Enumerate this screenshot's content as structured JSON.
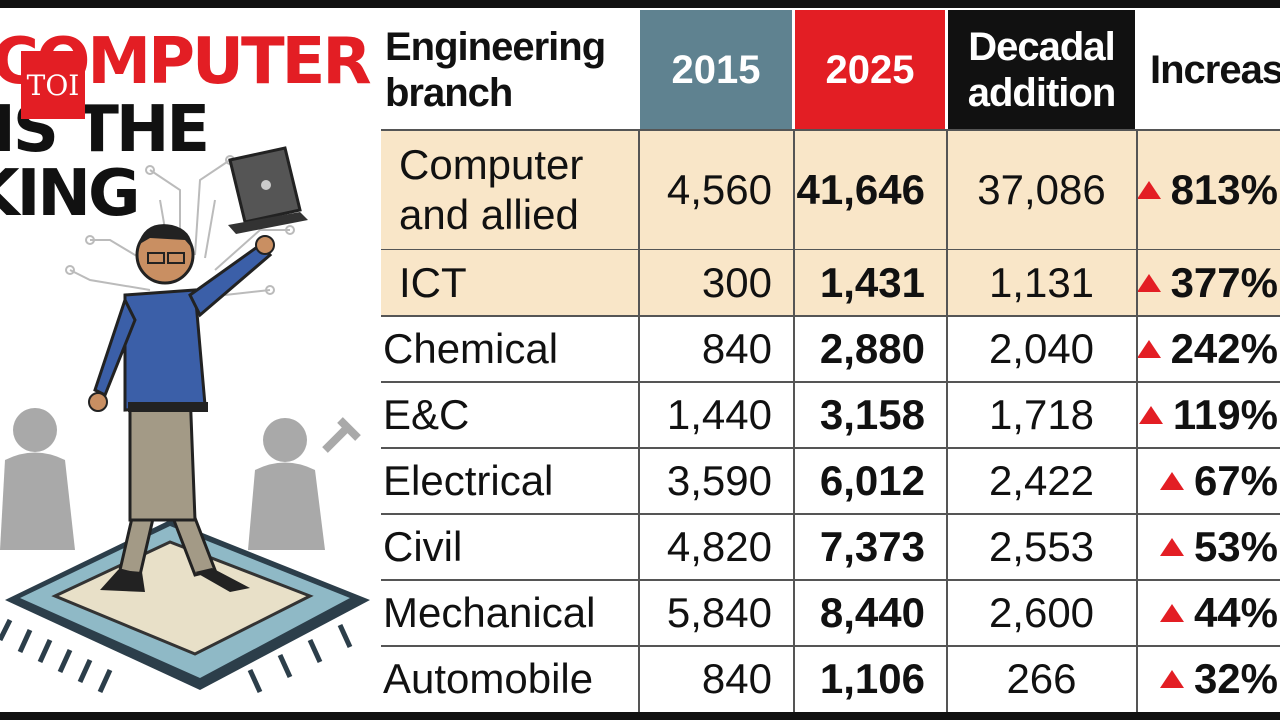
{
  "headline": {
    "line1": "COMPUTER",
    "line2": "IS THE",
    "line3": "KING"
  },
  "brand": {
    "logo_text": "TOI",
    "color": "#e31e24"
  },
  "colors": {
    "col_2015": "#5f8290",
    "col_2025": "#e31e24",
    "col_decadal": "#111111",
    "highlight_row": "#f9e6c8",
    "arrow": "#e31e24"
  },
  "table": {
    "headers": {
      "branch": "Engineering branch",
      "y2015": "2015",
      "y2025": "2025",
      "decadal": "Decadal addition",
      "increase": "Increase"
    },
    "rows": [
      {
        "branch": "Computer and allied",
        "y2015": "4,560",
        "y2025": "41,646",
        "decadal": "37,086",
        "increase": "813%",
        "highlight": true
      },
      {
        "branch": "ICT",
        "y2015": "300",
        "y2025": "1,431",
        "decadal": "1,131",
        "increase": "377%",
        "highlight": true
      },
      {
        "branch": "Chemical",
        "y2015": "840",
        "y2025": "2,880",
        "decadal": "2,040",
        "increase": "242%",
        "highlight": false
      },
      {
        "branch": "E&C",
        "y2015": "1,440",
        "y2025": "3,158",
        "decadal": "1,718",
        "increase": "119%",
        "highlight": false
      },
      {
        "branch": "Electrical",
        "y2015": "3,590",
        "y2025": "6,012",
        "decadal": "2,422",
        "increase": "67%",
        "highlight": false
      },
      {
        "branch": "Civil",
        "y2015": "4,820",
        "y2025": "7,373",
        "decadal": "2,553",
        "increase": "53%",
        "highlight": false
      },
      {
        "branch": "Mechanical",
        "y2015": "5,840",
        "y2025": "8,440",
        "decadal": "2,600",
        "increase": "44%",
        "highlight": false
      },
      {
        "branch": "Automobile",
        "y2015": "840",
        "y2025": "1,106",
        "decadal": "266",
        "increase": "32%",
        "highlight": false
      }
    ]
  },
  "chart_data": {
    "type": "table",
    "title": "COMPUTER IS THE KING",
    "columns": [
      "Engineering branch",
      "2015",
      "2025",
      "Decadal addition",
      "Increase"
    ],
    "rows": [
      [
        "Computer and allied",
        4560,
        41646,
        37086,
        "813%"
      ],
      [
        "ICT",
        300,
        1431,
        1131,
        "377%"
      ],
      [
        "Chemical",
        840,
        2880,
        2040,
        "242%"
      ],
      [
        "E&C",
        1440,
        3158,
        1718,
        "119%"
      ],
      [
        "Electrical",
        3590,
        6012,
        2422,
        "67%"
      ],
      [
        "Civil",
        4820,
        7373,
        2553,
        "53%"
      ],
      [
        "Mechanical",
        5840,
        8440,
        2600,
        "44%"
      ],
      [
        "Automobile",
        840,
        1106,
        266,
        "32%"
      ]
    ]
  }
}
